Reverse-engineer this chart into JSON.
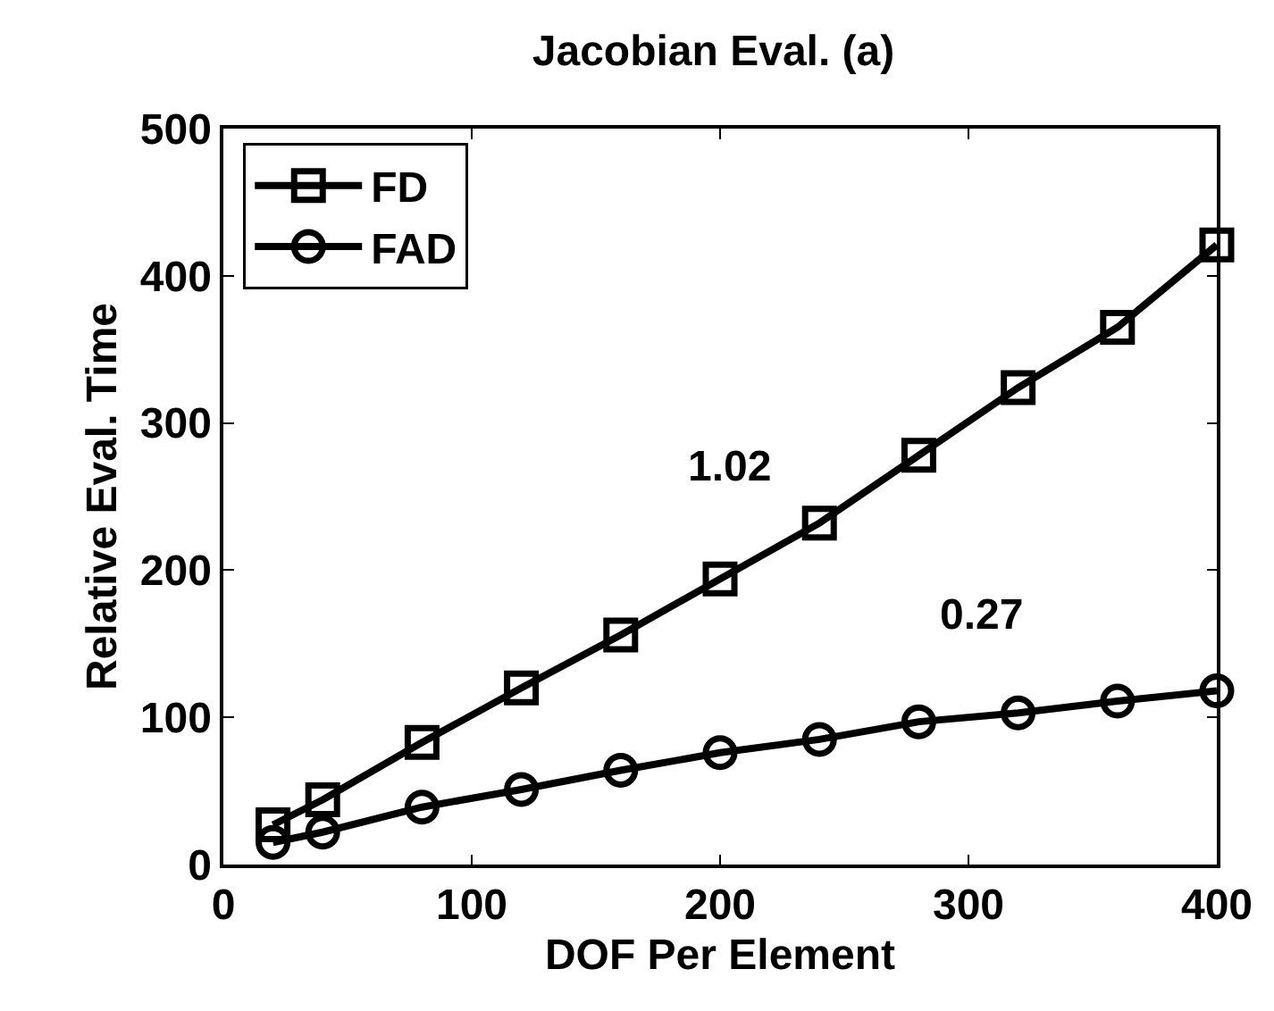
{
  "chart_data": {
    "type": "line",
    "title": "Jacobian Eval. (a)",
    "xlabel": "DOF Per Element",
    "ylabel": "Relative Eval. Time",
    "x": [
      20,
      40,
      80,
      120,
      160,
      200,
      240,
      280,
      320,
      360,
      400
    ],
    "series": [
      {
        "name": "FD",
        "color": "#000000",
        "marker": "square",
        "values": [
          27,
          44,
          83,
          120,
          156,
          194,
          232,
          278,
          324,
          365,
          421
        ]
      },
      {
        "name": "FAD",
        "color": "#000000",
        "marker": "circle",
        "values": [
          15,
          22,
          39,
          51,
          64,
          76,
          85,
          97,
          103,
          111,
          118
        ]
      }
    ],
    "annotations": [
      "1.02",
      "0.27"
    ],
    "xlim": [
      0,
      400
    ],
    "ylim": [
      0,
      500
    ],
    "xticks": [
      0,
      100,
      200,
      300,
      400
    ],
    "yticks": [
      0,
      100,
      200,
      300,
      400,
      500
    ],
    "grid": false,
    "legend": "top left",
    "line_style": "solid"
  }
}
